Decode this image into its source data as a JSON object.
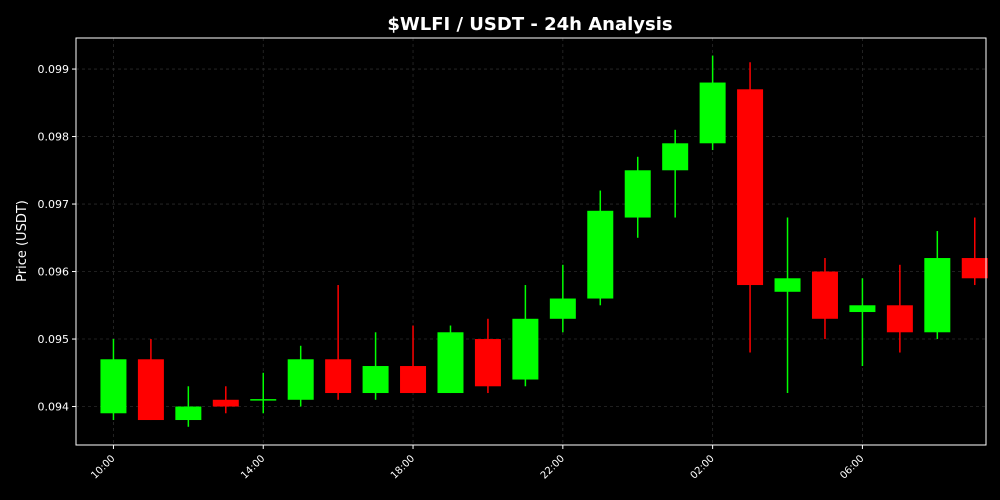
{
  "chart_data": {
    "type": "candlestick",
    "title": "$WLFI / USDT - 24h Analysis",
    "xlabel": "",
    "ylabel": "Price (USDT)",
    "grid": true,
    "legend": "none",
    "ylim": [
      0.09343,
      0.09946
    ],
    "yticks": [
      0.094,
      0.095,
      0.096,
      0.097,
      0.098,
      0.099
    ],
    "ytick_labels": [
      "0.094",
      "0.095",
      "0.096",
      "0.097",
      "0.098",
      "0.099"
    ],
    "xtick_hours": [
      10,
      14,
      18,
      22,
      26,
      30
    ],
    "xtick_labels": [
      "10:00",
      "14:00",
      "18:00",
      "22:00",
      "02:00",
      "06:00"
    ],
    "xlim_hours": [
      9.0,
      33.3
    ],
    "colors": {
      "up": "#00ff00",
      "down": "#ff0000",
      "background": "#000000",
      "text": "#ffffff",
      "grid": "#2a2a2a"
    },
    "candles": [
      {
        "hour": 10,
        "open": 0.0939,
        "high": 0.095,
        "low": 0.0938,
        "close": 0.0947
      },
      {
        "hour": 11,
        "open": 0.0947,
        "high": 0.095,
        "low": 0.0938,
        "close": 0.0938
      },
      {
        "hour": 12,
        "open": 0.0938,
        "high": 0.0943,
        "low": 0.0937,
        "close": 0.094
      },
      {
        "hour": 13,
        "open": 0.0941,
        "high": 0.0943,
        "low": 0.0939,
        "close": 0.094
      },
      {
        "hour": 14,
        "open": 0.0941,
        "high": 0.0945,
        "low": 0.0939,
        "close": 0.09411
      },
      {
        "hour": 15,
        "open": 0.0941,
        "high": 0.0949,
        "low": 0.094,
        "close": 0.0947
      },
      {
        "hour": 16,
        "open": 0.0947,
        "high": 0.0958,
        "low": 0.0941,
        "close": 0.0942
      },
      {
        "hour": 17,
        "open": 0.0942,
        "high": 0.0951,
        "low": 0.0941,
        "close": 0.0946
      },
      {
        "hour": 18,
        "open": 0.0946,
        "high": 0.0952,
        "low": 0.0942,
        "close": 0.0942
      },
      {
        "hour": 19,
        "open": 0.0942,
        "high": 0.0952,
        "low": 0.0942,
        "close": 0.0951
      },
      {
        "hour": 20,
        "open": 0.095,
        "high": 0.0953,
        "low": 0.0942,
        "close": 0.0943
      },
      {
        "hour": 21,
        "open": 0.0944,
        "high": 0.0958,
        "low": 0.0943,
        "close": 0.0953
      },
      {
        "hour": 22,
        "open": 0.0953,
        "high": 0.0961,
        "low": 0.0951,
        "close": 0.0956
      },
      {
        "hour": 23,
        "open": 0.0956,
        "high": 0.0972,
        "low": 0.0955,
        "close": 0.0969
      },
      {
        "hour": 24,
        "open": 0.0968,
        "high": 0.0977,
        "low": 0.0965,
        "close": 0.0975
      },
      {
        "hour": 25,
        "open": 0.0975,
        "high": 0.0981,
        "low": 0.0968,
        "close": 0.0979
      },
      {
        "hour": 26,
        "open": 0.0979,
        "high": 0.0992,
        "low": 0.0978,
        "close": 0.0988
      },
      {
        "hour": 27,
        "open": 0.0987,
        "high": 0.0991,
        "low": 0.0948,
        "close": 0.0958
      },
      {
        "hour": 28,
        "open": 0.0957,
        "high": 0.0968,
        "low": 0.0942,
        "close": 0.0959
      },
      {
        "hour": 29,
        "open": 0.096,
        "high": 0.0962,
        "low": 0.095,
        "close": 0.0953
      },
      {
        "hour": 30,
        "open": 0.0954,
        "high": 0.0959,
        "low": 0.0946,
        "close": 0.0955
      },
      {
        "hour": 31,
        "open": 0.0955,
        "high": 0.0961,
        "low": 0.0948,
        "close": 0.0951
      },
      {
        "hour": 32,
        "open": 0.0951,
        "high": 0.0966,
        "low": 0.095,
        "close": 0.0962
      },
      {
        "hour": 33,
        "open": 0.0962,
        "high": 0.0968,
        "low": 0.0958,
        "close": 0.0959
      }
    ]
  }
}
